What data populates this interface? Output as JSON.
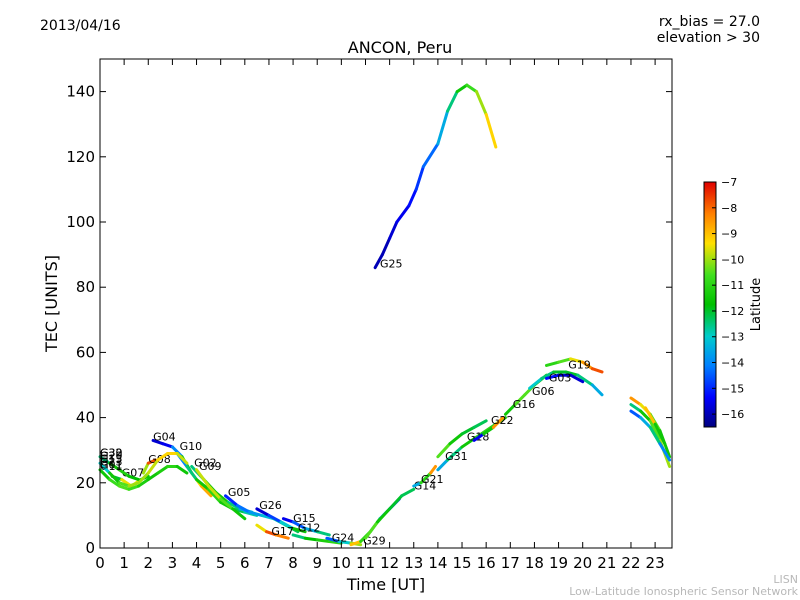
{
  "header": {
    "date": "2013/04/16",
    "bias_line1": "rx_bias = 27.0",
    "bias_line2": "elevation > 30",
    "credit_line1": "LISN",
    "credit_line2": "Low-Latitude Ionospheric Sensor Network"
  },
  "chart_data": {
    "type": "scatter",
    "title": "ANCON, Peru",
    "xlabel": "Time [UT]",
    "ylabel": "TEC [UNITS]",
    "xlim": [
      0,
      23.7
    ],
    "ylim": [
      0,
      150
    ],
    "xticks": [
      0,
      1,
      2,
      3,
      4,
      5,
      6,
      7,
      8,
      9,
      10,
      11,
      12,
      13,
      14,
      15,
      16,
      17,
      18,
      19,
      20,
      21,
      22,
      23
    ],
    "yticks": [
      0,
      20,
      40,
      60,
      80,
      100,
      120,
      140
    ],
    "grid": false,
    "colorbar": {
      "label": "Latitude",
      "min": -16.5,
      "max": -7,
      "ticks": [
        -7,
        -8,
        -9,
        -10,
        -11,
        -12,
        -13,
        -14,
        -15,
        -16
      ]
    },
    "series": [
      {
        "name": "G25",
        "label_at": [
          11.6,
          86
        ],
        "points": [
          [
            11.4,
            86,
            -16
          ],
          [
            11.7,
            90,
            -16
          ],
          [
            12.0,
            95,
            -16
          ],
          [
            12.3,
            100,
            -15.5
          ],
          [
            12.8,
            105,
            -15.5
          ],
          [
            13.1,
            110,
            -15
          ],
          [
            13.4,
            117,
            -14.7
          ],
          [
            14.0,
            124,
            -14
          ],
          [
            14.4,
            134,
            -13
          ],
          [
            14.8,
            140,
            -12
          ],
          [
            15.2,
            142,
            -11
          ],
          [
            15.6,
            140,
            -10.5
          ],
          [
            16.0,
            133,
            -9.5
          ],
          [
            16.4,
            123,
            -9
          ]
        ]
      },
      {
        "name": "G04",
        "label_at": [
          2.2,
          33
        ],
        "points": [
          [
            2.2,
            33,
            -15.5
          ],
          [
            2.6,
            32,
            -16
          ],
          [
            3.0,
            31,
            -15
          ],
          [
            3.4,
            28,
            -13
          ],
          [
            3.8,
            23,
            -10
          ],
          [
            4.2,
            19,
            -8.5
          ],
          [
            4.6,
            16,
            -9
          ]
        ]
      },
      {
        "name": "G10",
        "label_at": [
          3.3,
          30
        ],
        "points": [
          [
            3.2,
            29,
            -15
          ],
          [
            3.6,
            25,
            -13
          ],
          [
            4.0,
            21,
            -12
          ],
          [
            4.5,
            18,
            -11
          ],
          [
            5.0,
            14,
            -11
          ],
          [
            5.5,
            12,
            -12
          ],
          [
            6.0,
            11,
            -12.5
          ],
          [
            6.5,
            10,
            -13
          ]
        ]
      },
      {
        "name": "G08",
        "label_at": [
          2.0,
          26
        ],
        "points": [
          [
            1.8,
            23,
            -12
          ],
          [
            2.0,
            26,
            -8
          ],
          [
            2.3,
            27,
            -7.5
          ]
        ]
      },
      {
        "name": "G07",
        "label_at": [
          0.9,
          22
        ],
        "points": [
          [
            0.5,
            22,
            -13
          ],
          [
            0.9,
            21,
            -11
          ],
          [
            1.3,
            19,
            -8
          ],
          [
            1.7,
            21,
            -11
          ],
          [
            2.0,
            22,
            -12
          ]
        ]
      },
      {
        "name": "G02",
        "label_at": [
          3.9,
          25
        ],
        "points": [
          [
            3.8,
            25,
            -13
          ],
          [
            4.3,
            21,
            -12
          ],
          [
            4.8,
            17,
            -11
          ],
          [
            5.3,
            14,
            -12
          ],
          [
            5.8,
            12,
            -13
          ],
          [
            6.3,
            11,
            -14
          ]
        ]
      },
      {
        "name": "G09",
        "label_at": [
          4.1,
          24
        ],
        "points": [
          [
            4.0,
            24,
            -10
          ],
          [
            4.5,
            19,
            -9.5
          ],
          [
            5.0,
            15,
            -10
          ],
          [
            5.5,
            12,
            -11
          ],
          [
            6.0,
            9,
            -12
          ]
        ]
      },
      {
        "name": "G05",
        "label_at": [
          5.3,
          16
        ],
        "points": [
          [
            5.2,
            16,
            -15.5
          ],
          [
            5.7,
            13,
            -14.5
          ],
          [
            6.2,
            11,
            -14
          ],
          [
            6.7,
            10,
            -13.5
          ],
          [
            7.2,
            9,
            -13
          ],
          [
            7.7,
            7,
            -12.5
          ],
          [
            8.2,
            5,
            -12
          ]
        ]
      },
      {
        "name": "G26",
        "label_at": [
          6.6,
          12
        ],
        "points": [
          [
            6.5,
            12,
            -16
          ],
          [
            7.0,
            10,
            -15.5
          ],
          [
            7.5,
            8,
            -14
          ],
          [
            8.0,
            6,
            -12
          ],
          [
            8.5,
            5,
            -11
          ]
        ]
      },
      {
        "name": "G17",
        "label_at": [
          7.1,
          4
        ],
        "points": [
          [
            6.5,
            7,
            -11
          ],
          [
            6.9,
            5,
            -8
          ],
          [
            7.3,
            4,
            -7.5
          ],
          [
            7.8,
            3,
            -9
          ]
        ]
      },
      {
        "name": "G15",
        "label_at": [
          8.0,
          8
        ],
        "points": [
          [
            7.6,
            9,
            -16
          ],
          [
            8.0,
            8,
            -15
          ],
          [
            8.5,
            6,
            -14
          ],
          [
            9.0,
            5,
            -13
          ],
          [
            9.5,
            4,
            -12
          ]
        ]
      },
      {
        "name": "G12",
        "label_at": [
          8.2,
          5
        ],
        "points": [
          [
            8.0,
            4,
            -13
          ],
          [
            8.5,
            3,
            -12
          ],
          [
            9.0,
            2.5,
            -11.5
          ],
          [
            9.5,
            2,
            -11
          ],
          [
            10.0,
            1.5,
            -11
          ]
        ]
      },
      {
        "name": "G24",
        "label_at": [
          9.6,
          2
        ],
        "points": [
          [
            9.4,
            3,
            -15
          ],
          [
            9.9,
            2,
            -14
          ],
          [
            10.4,
            1.5,
            -12
          ],
          [
            10.8,
            1,
            -8
          ]
        ]
      },
      {
        "name": "G29",
        "label_at": [
          10.9,
          1
        ],
        "points": [
          [
            10.4,
            1,
            -8
          ],
          [
            10.8,
            2,
            -10
          ],
          [
            11.2,
            5,
            -12
          ],
          [
            11.6,
            9,
            -13
          ],
          [
            12.0,
            12,
            -14
          ],
          [
            12.4,
            15,
            -15.5
          ]
        ]
      },
      {
        "name": "G14",
        "label_at": [
          13.0,
          18
        ],
        "points": [
          [
            11.0,
            3,
            -10
          ],
          [
            11.5,
            8,
            -11
          ],
          [
            12.0,
            12,
            -12
          ],
          [
            12.5,
            16,
            -12
          ],
          [
            13.0,
            18,
            -12.5
          ]
        ]
      },
      {
        "name": "G21",
        "label_at": [
          13.3,
          20
        ],
        "points": [
          [
            13.0,
            19,
            -14
          ],
          [
            13.3,
            20,
            -13
          ],
          [
            13.7,
            23,
            -9
          ],
          [
            13.9,
            25,
            -8
          ]
        ]
      },
      {
        "name": "G31",
        "label_at": [
          14.3,
          27
        ],
        "points": [
          [
            14.0,
            24,
            -14
          ],
          [
            14.4,
            27,
            -13
          ],
          [
            15.0,
            31,
            -12
          ],
          [
            15.6,
            34,
            -11
          ],
          [
            16.2,
            37,
            -11
          ],
          [
            16.8,
            40,
            -11
          ]
        ]
      },
      {
        "name": "G18",
        "label_at": [
          15.2,
          33
        ],
        "points": [
          [
            14.0,
            28,
            -10
          ],
          [
            14.5,
            32,
            -11
          ],
          [
            15.0,
            35,
            -12
          ],
          [
            15.5,
            37,
            -12
          ],
          [
            16.0,
            39,
            -12.5
          ]
        ]
      },
      {
        "name": "G22",
        "label_at": [
          16.2,
          38
        ],
        "points": [
          [
            15.5,
            33,
            -16
          ],
          [
            15.9,
            35,
            -15
          ],
          [
            16.3,
            37,
            -8
          ],
          [
            16.7,
            40,
            -9
          ]
        ]
      },
      {
        "name": "G16",
        "label_at": [
          17.1,
          43
        ],
        "points": [
          [
            16.8,
            41,
            -12
          ],
          [
            17.2,
            44,
            -11
          ],
          [
            17.6,
            47,
            -10
          ],
          [
            18.0,
            50,
            -11
          ],
          [
            18.5,
            53,
            -12
          ]
        ]
      },
      {
        "name": "G06",
        "label_at": [
          17.9,
          47
        ],
        "points": [
          [
            17.8,
            49,
            -13
          ],
          [
            18.3,
            52,
            -13
          ],
          [
            18.8,
            54,
            -12
          ],
          [
            19.3,
            54,
            -12
          ],
          [
            19.8,
            53,
            -12
          ],
          [
            20.4,
            50,
            -13
          ],
          [
            20.8,
            47,
            -14
          ]
        ]
      },
      {
        "name": "G03",
        "label_at": [
          18.6,
          51
        ],
        "points": [
          [
            18.5,
            52,
            -15
          ],
          [
            19.0,
            53,
            -15.5
          ],
          [
            19.5,
            53,
            -16
          ],
          [
            20.0,
            51,
            -15.5
          ]
        ]
      },
      {
        "name": "G19",
        "label_at": [
          19.4,
          55
        ],
        "points": [
          [
            18.5,
            56,
            -11
          ],
          [
            19.0,
            57,
            -11
          ],
          [
            19.5,
            58,
            -10
          ],
          [
            20.0,
            57,
            -9
          ],
          [
            20.4,
            55,
            -8
          ],
          [
            20.8,
            54,
            -7.5
          ]
        ]
      },
      {
        "name": "G32",
        "label_at": [
          0.0,
          28
        ],
        "points": [
          [
            0.0,
            28,
            -13
          ],
          [
            0.4,
            26,
            -12
          ],
          [
            0.8,
            24,
            -11
          ],
          [
            1.2,
            22,
            -11.5
          ],
          [
            1.6,
            21,
            -12
          ]
        ]
      },
      {
        "name": "G11",
        "label_at": [
          0.0,
          24
        ],
        "points": [
          [
            0.0,
            24,
            -12
          ],
          [
            0.4,
            21,
            -11
          ],
          [
            0.8,
            19,
            -10.5
          ],
          [
            1.2,
            18,
            -10.5
          ],
          [
            1.6,
            19,
            -11
          ],
          [
            2.0,
            21,
            -11.5
          ],
          [
            2.4,
            23,
            -11.5
          ],
          [
            2.8,
            25,
            -11
          ],
          [
            3.2,
            25,
            -11
          ],
          [
            3.6,
            23,
            -12
          ]
        ]
      },
      {
        "name": "",
        "label_at": null,
        "points": [
          [
            0.0,
            26,
            -14
          ],
          [
            0.4,
            23,
            -12
          ],
          [
            0.8,
            20,
            -11
          ],
          [
            1.2,
            19,
            -10
          ],
          [
            1.6,
            20,
            -10
          ],
          [
            2.0,
            23,
            -10
          ],
          [
            2.4,
            27,
            -9.5
          ],
          [
            2.8,
            29,
            -9
          ],
          [
            3.2,
            29,
            -9.5
          ],
          [
            3.6,
            26,
            -10
          ]
        ]
      },
      {
        "name": "",
        "label_at": null,
        "points": [
          [
            22.0,
            46,
            -8
          ],
          [
            22.4,
            44,
            -9
          ],
          [
            22.8,
            41,
            -10
          ],
          [
            23.2,
            36,
            -11
          ],
          [
            23.6,
            28,
            -12
          ]
        ]
      },
      {
        "name": "",
        "label_at": null,
        "points": [
          [
            22.0,
            44,
            -13
          ],
          [
            22.4,
            42,
            -12
          ],
          [
            22.8,
            39,
            -11
          ],
          [
            23.2,
            33,
            -10
          ],
          [
            23.6,
            25,
            -10
          ]
        ]
      },
      {
        "name": "",
        "label_at": null,
        "points": [
          [
            22.0,
            42,
            -15
          ],
          [
            22.4,
            40,
            -14
          ],
          [
            22.8,
            37,
            -13
          ],
          [
            23.2,
            32,
            -12
          ],
          [
            23.6,
            27,
            -16
          ]
        ]
      },
      {
        "name": "",
        "label_at": null,
        "points": [
          [
            22.6,
            43,
            -8
          ],
          [
            23.0,
            38,
            -10
          ],
          [
            23.4,
            32,
            -13
          ]
        ]
      }
    ],
    "label_stack_left": [
      "G30",
      "G20",
      "G13",
      "G23",
      "G01"
    ]
  }
}
